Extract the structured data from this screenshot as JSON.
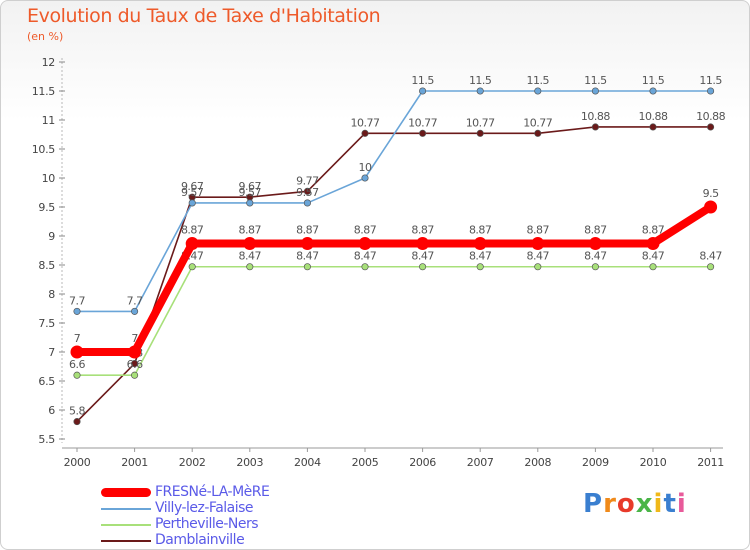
{
  "chart_data": {
    "type": "line",
    "title": "Evolution du Taux de Taxe d'Habitation",
    "subtitle": "(en %)",
    "x": [
      "2000",
      "2001",
      "2002",
      "2003",
      "2004",
      "2005",
      "2006",
      "2007",
      "2008",
      "2009",
      "2010",
      "2011"
    ],
    "ylim": [
      5.5,
      12
    ],
    "yticks": [
      "5.5",
      "6",
      "6.5",
      "7",
      "7.5",
      "8",
      "8.5",
      "9",
      "9.5",
      "10",
      "10.5",
      "11",
      "11.5",
      "12"
    ],
    "grid": false,
    "legend_position": "bottom-left",
    "series": [
      {
        "name": "Damblainville",
        "color": "#6b1a1a",
        "values": [
          5.8,
          6.8,
          9.67,
          9.67,
          9.77,
          10.77,
          10.77,
          10.77,
          10.77,
          10.88,
          10.88,
          10.88
        ],
        "labels": [
          "5.8",
          "6.8",
          "9.67",
          "9.67",
          "9.77",
          "10.77",
          "10.77",
          "10.77",
          "10.77",
          "10.88",
          "10.88",
          "10.88"
        ]
      },
      {
        "name": "Pertheville-Ners",
        "color": "#a8e07a",
        "values": [
          6.6,
          6.6,
          8.47,
          8.47,
          8.47,
          8.47,
          8.47,
          8.47,
          8.47,
          8.47,
          8.47,
          8.47
        ],
        "labels": [
          "6.6",
          "6.6",
          "8.47",
          "8.47",
          "8.47",
          "8.47",
          "8.47",
          "8.47",
          "8.47",
          "8.47",
          "8.47",
          "8.47"
        ]
      },
      {
        "name": "Villy-lez-Falaise",
        "color": "#6aa5d8",
        "values": [
          7.7,
          7.7,
          9.57,
          9.57,
          9.57,
          10,
          11.5,
          11.5,
          11.5,
          11.5,
          11.5,
          11.5
        ],
        "labels": [
          "7.7",
          "7.7",
          "9.57",
          "9.57",
          "9.57",
          "10",
          "11.5",
          "11.5",
          "11.5",
          "11.5",
          "11.5",
          "11.5"
        ]
      },
      {
        "name": "FRESNé-LA-MèRE",
        "color": "#ff0000",
        "values": [
          7,
          7,
          8.87,
          8.87,
          8.87,
          8.87,
          8.87,
          8.87,
          8.87,
          8.87,
          8.87,
          9.5
        ],
        "labels": [
          "7",
          "7",
          "8.87",
          "8.87",
          "8.87",
          "8.87",
          "8.87",
          "8.87",
          "8.87",
          "8.87",
          "8.87",
          "9.5"
        ]
      }
    ]
  },
  "legend": [
    {
      "label": "FRESNé-LA-MèRE",
      "color": "#ff0000",
      "style": "thick"
    },
    {
      "label": "Villy-lez-Falaise",
      "color": "#6aa5d8",
      "style": "thin"
    },
    {
      "label": "Pertheville-Ners",
      "color": "#a8e07a",
      "style": "thin"
    },
    {
      "label": "Damblainville",
      "color": "#6b1a1a",
      "style": "thin"
    }
  ],
  "logo": {
    "letters": [
      "P",
      "r",
      "o",
      "x",
      "i",
      "t",
      "i"
    ]
  }
}
